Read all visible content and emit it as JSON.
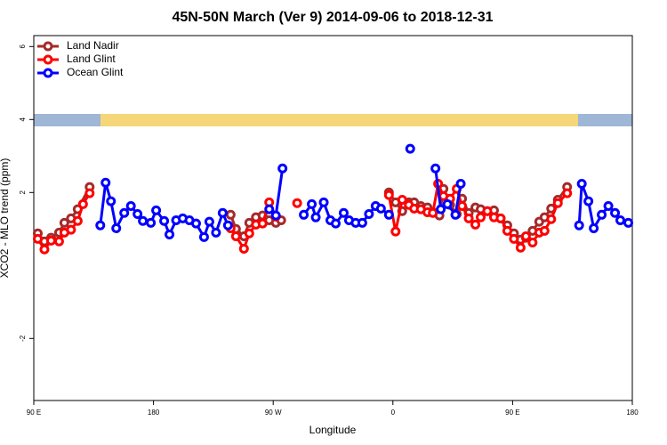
{
  "chart_data": {
    "type": "line",
    "title": "45N-50N March (Ver 9)   2014-09-06 to 2018-12-31",
    "x_label": "Longitude",
    "y_label": "XCO2 - MLO trend (ppm)",
    "xlim": [
      90,
      540
    ],
    "ylim": [
      -3.7,
      6.3
    ],
    "xticks": [
      {
        "value": 90,
        "label": "90 E"
      },
      180,
      {
        "value": 270,
        "label": "90 W"
      },
      {
        "value": 360,
        "label": "0"
      },
      {
        "value": 450,
        "label": "90 E"
      },
      {
        "value": 540,
        "label": "180"
      }
    ],
    "yticks": [
      -2,
      2,
      4,
      6
    ],
    "legend": "top-left",
    "series": [
      {
        "name": "Land Nadir",
        "color": "#a52a2a",
        "x": [
          93,
          98,
          103,
          109,
          113,
          118,
          123,
          132,
          null,
          238,
          242,
          248,
          252,
          257,
          262,
          267,
          272,
          276,
          null,
          357,
          362,
          367,
          372,
          376,
          381,
          386,
          390,
          395,
          398,
          403,
          408,
          412,
          417,
          422,
          426,
          431,
          436,
          441,
          446,
          451,
          456,
          460,
          465,
          470,
          474,
          479,
          484,
          491
        ],
        "values": [
          0.88,
          0.66,
          0.76,
          0.9,
          1.17,
          1.29,
          1.54,
          2.15,
          null,
          1.39,
          1.0,
          0.8,
          1.17,
          1.32,
          1.37,
          1.24,
          1.17,
          1.24,
          null,
          2.0,
          1.73,
          1.49,
          1.73,
          1.73,
          1.63,
          1.59,
          1.46,
          1.37,
          2.1,
          1.66,
          1.41,
          1.83,
          1.44,
          1.59,
          1.54,
          1.49,
          1.51,
          1.29,
          1.1,
          0.88,
          0.71,
          0.76,
          0.95,
          1.2,
          1.32,
          1.56,
          1.8,
          2.15
        ]
      },
      {
        "name": "Land Glint",
        "color": "#ff0000",
        "x": [
          93,
          98,
          103,
          109,
          113,
          118,
          123,
          127,
          132,
          null,
          238,
          242,
          248,
          252,
          257,
          262,
          267,
          272,
          null,
          288,
          null,
          357,
          362,
          367,
          372,
          376,
          381,
          386,
          390,
          394,
          398,
          403,
          408,
          412,
          417,
          422,
          426,
          431,
          436,
          441,
          446,
          451,
          456,
          460,
          465,
          470,
          474,
          479,
          484,
          491
        ],
        "values": [
          0.73,
          0.44,
          0.68,
          0.66,
          0.9,
          0.98,
          1.22,
          1.68,
          1.98,
          null,
          1.02,
          0.8,
          0.46,
          0.88,
          1.12,
          1.15,
          1.73,
          1.34,
          null,
          1.71,
          null,
          1.93,
          0.93,
          1.8,
          1.66,
          1.56,
          1.54,
          1.46,
          1.44,
          2.24,
          1.9,
          1.83,
          2.1,
          1.63,
          1.29,
          1.12,
          1.32,
          1.49,
          1.32,
          1.29,
          0.95,
          0.73,
          0.49,
          0.8,
          0.63,
          0.9,
          0.95,
          1.27,
          1.71,
          1.98
        ]
      },
      {
        "name": "Ocean Glint",
        "color": "#0000ff",
        "x": [
          140,
          144,
          148,
          152,
          158,
          163,
          168,
          172,
          178,
          182,
          188,
          192,
          197,
          202,
          207,
          212,
          218,
          222,
          227,
          232,
          236,
          null,
          267,
          272,
          277,
          null,
          293,
          299,
          302,
          308,
          313,
          317,
          323,
          327,
          332,
          337,
          342,
          347,
          351,
          357,
          null,
          373,
          null,
          392,
          396,
          401,
          407,
          411,
          null,
          500,
          502,
          507,
          511,
          517,
          522,
          527,
          531,
          537
        ],
        "values": [
          1.1,
          2.27,
          1.76,
          1.02,
          1.44,
          1.63,
          1.41,
          1.22,
          1.17,
          1.51,
          1.22,
          0.85,
          1.24,
          1.29,
          1.24,
          1.15,
          0.78,
          1.2,
          0.9,
          1.44,
          1.1,
          null,
          1.54,
          1.37,
          2.66,
          null,
          1.39,
          1.68,
          1.32,
          1.73,
          1.24,
          1.15,
          1.44,
          1.24,
          1.17,
          1.17,
          1.41,
          1.63,
          1.56,
          1.39,
          null,
          3.2,
          null,
          2.66,
          1.54,
          1.68,
          1.39,
          2.24,
          null,
          1.1,
          2.24,
          1.76,
          1.02,
          1.39,
          1.63,
          1.44,
          1.24,
          1.17
        ]
      }
    ]
  }
}
